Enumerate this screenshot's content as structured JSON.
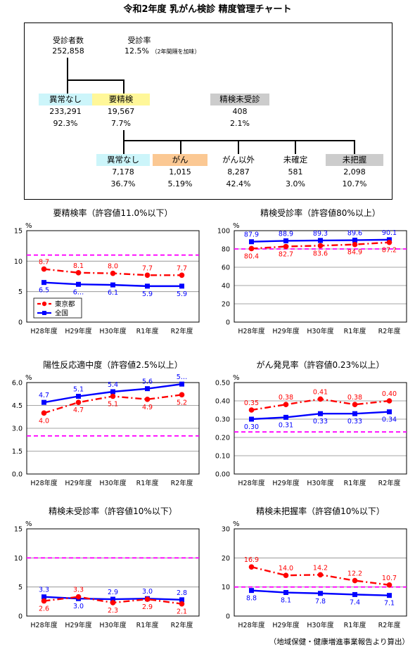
{
  "title": "令和2年度 乳がん検診 精度管理チャート",
  "flow": {
    "examinees_label": "受診者数",
    "examinees_value": "252,858",
    "rate_label": "受診率",
    "rate_value": "12.5%",
    "rate_note": "（2年間隔を加味）",
    "nonabnormal_label": "異常なし",
    "nonabnormal_value": "233,291",
    "nonabnormal_pct": "92.3%",
    "require_label": "要精検",
    "require_value": "19,567",
    "require_pct": "7.7%",
    "unexamined_label": "精検未受診",
    "unexamined_value": "408",
    "unexamined_pct": "2.1%",
    "results": [
      {
        "label": "異常なし",
        "value": "7,178",
        "pct": "36.7%"
      },
      {
        "label": "がん",
        "value": "1,015",
        "pct": "5.19%"
      },
      {
        "label": "がん以外",
        "value": "8,287",
        "pct": "42.4%"
      },
      {
        "label": "未確定",
        "value": "581",
        "pct": "3.0%"
      },
      {
        "label": "未把握",
        "value": "2,098",
        "pct": "10.7%"
      }
    ]
  },
  "colors": {
    "tokyo": "#ff0000",
    "national": "#0000ff",
    "tolerance": "#ff00ff",
    "cyan": "#ccf5fa",
    "yellow": "#fff799",
    "gray": "#cccccc",
    "orange": "#fbc893"
  },
  "chart_data": [
    {
      "type": "line",
      "title": "要精検率（許容値11.0%以下）",
      "unit": "%",
      "categories": [
        "H28年度",
        "H29年度",
        "H30年度",
        "R1年度",
        "R2年度"
      ],
      "ylim": [
        0,
        15
      ],
      "yticks": [
        "0",
        "5",
        "10",
        "15"
      ],
      "tolerance": 11.0,
      "legend": true,
      "series": [
        {
          "name": "東京都",
          "values": [
            8.7,
            8.1,
            8.0,
            7.7,
            7.7
          ],
          "labels": [
            "8.7",
            "8.1",
            "8.0",
            "7.7",
            "7.7"
          ]
        },
        {
          "name": "全国",
          "values": [
            6.5,
            6.2,
            6.1,
            5.9,
            5.9
          ],
          "labels": [
            "6.5",
            "6…",
            "6.1",
            "5.9",
            "5.9"
          ]
        }
      ]
    },
    {
      "type": "line",
      "title": "精検受診率（許容値80%以上）",
      "unit": "%",
      "categories": [
        "H28年度",
        "H29年度",
        "H30年度",
        "R1年度",
        "R2年度"
      ],
      "ylim": [
        0,
        100
      ],
      "yticks": [
        "0",
        "20",
        "40",
        "60",
        "80",
        "100"
      ],
      "tolerance": 80,
      "legend": false,
      "series": [
        {
          "name": "東京都",
          "values": [
            80.4,
            82.7,
            83.6,
            84.9,
            87.2
          ],
          "labels": [
            "80.4",
            "82.7",
            "83.6",
            "84.9",
            "87.2"
          ]
        },
        {
          "name": "全国",
          "values": [
            87.9,
            88.9,
            89.3,
            89.6,
            90.1
          ],
          "labels": [
            "87.9",
            "88.9",
            "89.3",
            "89.6",
            "90.1"
          ]
        }
      ]
    },
    {
      "type": "line",
      "title": "陽性反応適中度（許容値2.5%以上）",
      "unit": "%",
      "categories": [
        "H28年度",
        "H29年度",
        "H30年度",
        "R1年度",
        "R2年度"
      ],
      "ylim": [
        0,
        6
      ],
      "yticks": [
        "0.0",
        "1.5",
        "3.0",
        "4.5",
        "6.0"
      ],
      "tolerance": 2.5,
      "legend": false,
      "series": [
        {
          "name": "東京都",
          "values": [
            4.0,
            4.7,
            5.1,
            4.9,
            5.2
          ],
          "labels": [
            "4.0",
            "4.7",
            "5.1",
            "4.9",
            "5.2"
          ]
        },
        {
          "name": "全国",
          "values": [
            4.7,
            5.1,
            5.4,
            5.6,
            5.9
          ],
          "labels": [
            "4.7",
            "5.1",
            "5.4",
            "5.6",
            "5…"
          ]
        }
      ]
    },
    {
      "type": "line",
      "title": "がん発見率（許容値0.23%以上）",
      "unit": "%",
      "categories": [
        "H28年度",
        "H29年度",
        "H30年度",
        "R1年度",
        "R2年度"
      ],
      "ylim": [
        0,
        0.5
      ],
      "yticks": [
        "0.00",
        "0.10",
        "0.20",
        "0.30",
        "0.40",
        "0.50"
      ],
      "tolerance": 0.23,
      "legend": false,
      "series": [
        {
          "name": "東京都",
          "values": [
            0.35,
            0.38,
            0.41,
            0.38,
            0.4
          ],
          "labels": [
            "0.35",
            "0.38",
            "0.41",
            "0.38",
            "0.40"
          ]
        },
        {
          "name": "全国",
          "values": [
            0.3,
            0.31,
            0.33,
            0.33,
            0.34
          ],
          "labels": [
            "0.30",
            "0.31",
            "0.33",
            "0.33",
            "0.34"
          ]
        }
      ]
    },
    {
      "type": "line",
      "title": "精検未受診率（許容値10%以下）",
      "unit": "%",
      "categories": [
        "H28年度",
        "H29年度",
        "H30年度",
        "R1年度",
        "R2年度"
      ],
      "ylim": [
        0,
        15
      ],
      "yticks": [
        "0",
        "5",
        "10",
        "15"
      ],
      "tolerance": 10,
      "legend": false,
      "series": [
        {
          "name": "東京都",
          "values": [
            2.6,
            3.3,
            2.3,
            2.9,
            2.1
          ],
          "labels": [
            "2.6",
            "3.3",
            "2.3",
            "2.9",
            "2.1"
          ]
        },
        {
          "name": "全国",
          "values": [
            3.3,
            3.0,
            2.9,
            3.0,
            2.8
          ],
          "labels": [
            "3.3",
            "3.0",
            "2.9",
            "3.0",
            "2.8"
          ]
        }
      ]
    },
    {
      "type": "line",
      "title": "精検未把握率（許容値10%以下）",
      "unit": "%",
      "categories": [
        "H28年度",
        "H29年度",
        "H30年度",
        "R1年度",
        "R2年度"
      ],
      "ylim": [
        0,
        30
      ],
      "yticks": [
        "0",
        "10",
        "20",
        "30"
      ],
      "tolerance": 10,
      "legend": false,
      "series": [
        {
          "name": "東京都",
          "values": [
            16.9,
            14.0,
            14.2,
            12.2,
            10.7
          ],
          "labels": [
            "16.9",
            "14.0",
            "14.2",
            "12.2",
            "10.7"
          ]
        },
        {
          "name": "全国",
          "values": [
            8.8,
            8.1,
            7.8,
            7.4,
            7.1
          ],
          "labels": [
            "8.8",
            "8.1",
            "7.8",
            "7.4",
            "7.1"
          ]
        }
      ]
    }
  ],
  "footer": "（地域保健・健康増進事業報告より算出）"
}
